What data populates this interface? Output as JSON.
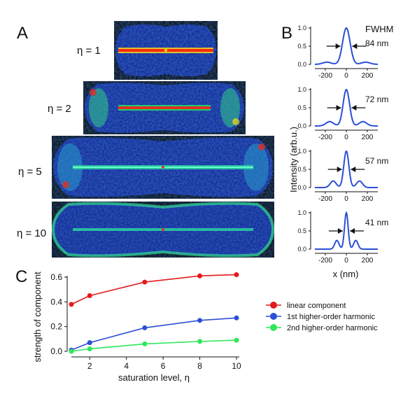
{
  "panels": {
    "A": "A",
    "B": "B",
    "C": "C"
  },
  "panel_a": {
    "images": [
      {
        "eta_label": "η = 1",
        "description": "super-resolution simulated image, eta 1"
      },
      {
        "eta_label": "η = 2",
        "description": "super-resolution simulated image, eta 2"
      },
      {
        "eta_label": "η = 5",
        "description": "super-resolution simulated image, eta 5"
      },
      {
        "eta_label": "η = 10",
        "description": "super-resolution simulated image, eta 10"
      }
    ]
  },
  "chart_data": [
    {
      "type": "line",
      "panel": "B",
      "title": "FWHM",
      "ylabel": "Intensity (arb.u.)",
      "xlabel": "x (nm)",
      "xlim": [
        -300,
        300
      ],
      "ylim": [
        0,
        1.0
      ],
      "xticks": [
        -200,
        0,
        200
      ],
      "yticks": [
        "0.0",
        "0.5",
        "1.0"
      ],
      "profiles": [
        {
          "fwhm_label": "84 nm",
          "fwhm": 84
        },
        {
          "fwhm_label": "72 nm",
          "fwhm": 72
        },
        {
          "fwhm_label": "57 nm",
          "fwhm": 57
        },
        {
          "fwhm_label": "41 nm",
          "fwhm": 41
        }
      ],
      "line_color": "#2b4fd6"
    },
    {
      "type": "line",
      "panel": "C",
      "xlabel": "saturation level, η",
      "ylabel": "strength of component",
      "xlim": [
        1,
        10
      ],
      "ylim": [
        0,
        0.6
      ],
      "xticks": [
        2,
        4,
        6,
        8,
        10
      ],
      "yticks": [
        "0.0",
        "0.2",
        "0.4",
        "0.6"
      ],
      "x": [
        1,
        2,
        5,
        8,
        10
      ],
      "series": [
        {
          "name": "linear component",
          "color": "#e41a1c",
          "values": [
            0.38,
            0.45,
            0.56,
            0.61,
            0.62
          ]
        },
        {
          "name": "1st higher-order harmonic",
          "color": "#2b4fd6",
          "values": [
            0.01,
            0.07,
            0.19,
            0.25,
            0.27
          ]
        },
        {
          "name": "2nd higher-order harmonic",
          "color": "#2ee85a",
          "values": [
            0.0,
            0.02,
            0.06,
            0.08,
            0.09
          ]
        }
      ],
      "legend_position": "right"
    }
  ]
}
